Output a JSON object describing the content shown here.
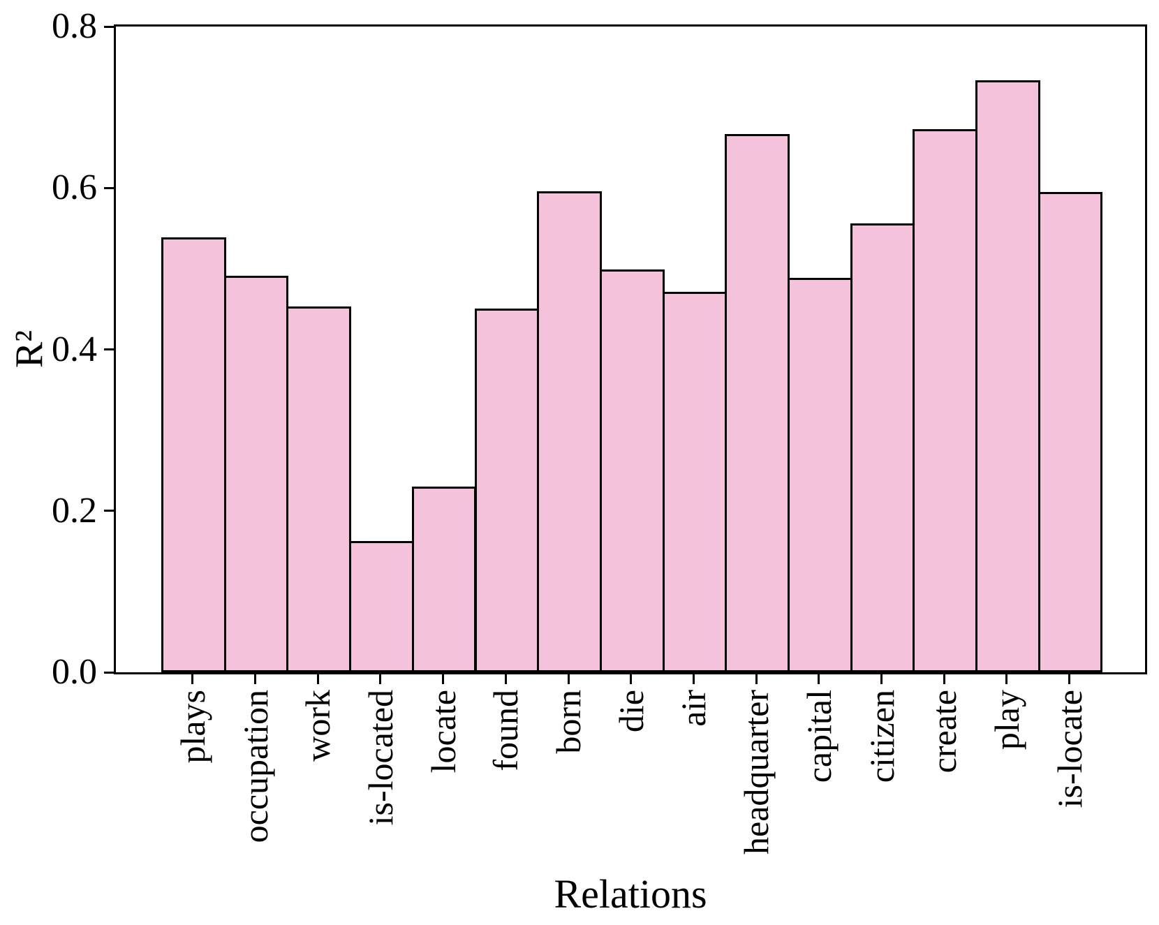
{
  "chart_data": {
    "type": "bar",
    "title": "",
    "xlabel": "Relations",
    "ylabel": "R²",
    "categories": [
      "plays",
      "occupation",
      "work",
      "is-located",
      "locate",
      "found",
      "born",
      "die",
      "air",
      "headquarter",
      "capital",
      "citizen",
      "create",
      "play",
      "is-locate"
    ],
    "values": [
      0.539,
      0.491,
      0.453,
      0.163,
      0.23,
      0.451,
      0.596,
      0.499,
      0.471,
      0.667,
      0.489,
      0.556,
      0.673,
      0.733,
      0.595
    ],
    "ylim": [
      0.0,
      0.8
    ],
    "yticks": [
      0.0,
      0.2,
      0.4,
      0.6,
      0.8
    ],
    "ytick_labels": [
      "0.0",
      "0.2",
      "0.4",
      "0.6",
      "0.8"
    ],
    "grid": false,
    "legend": null,
    "bar_color": "#f4c3db",
    "bar_edge_color": "#000000",
    "axis_color": "#000000",
    "background_color": "#ffffff"
  }
}
